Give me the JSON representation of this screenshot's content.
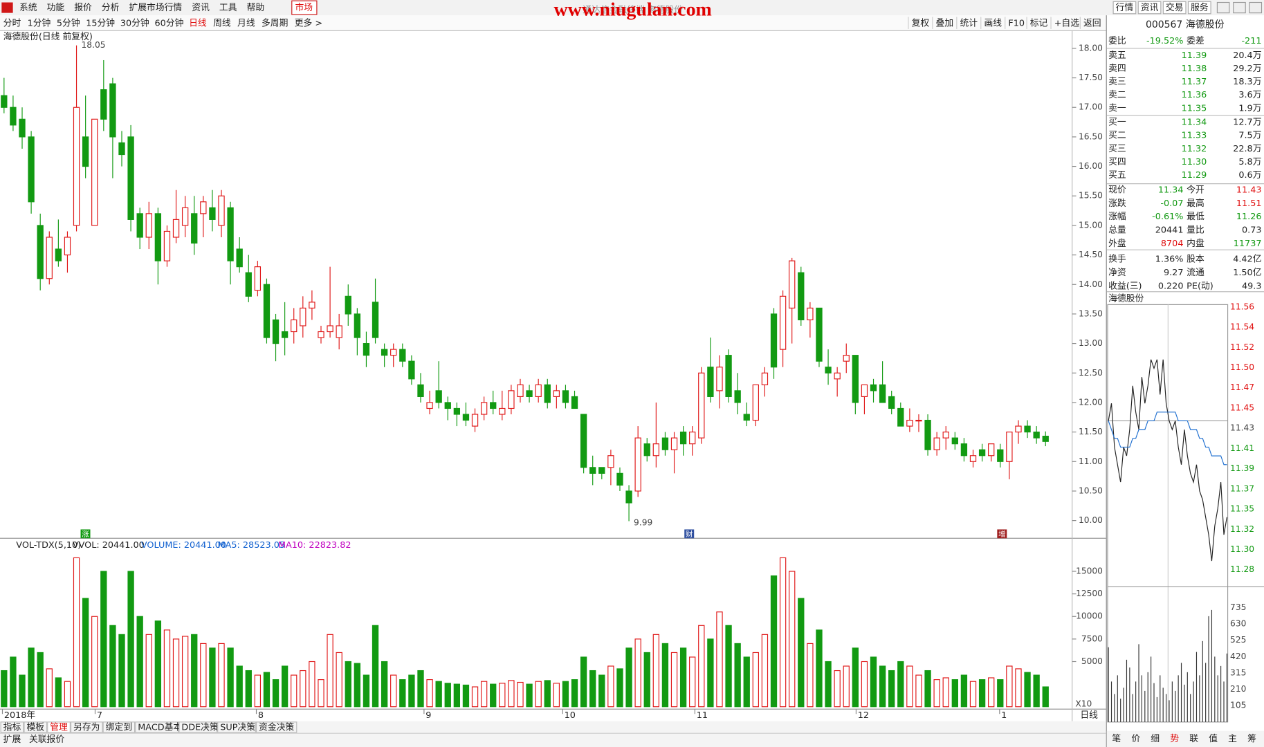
{
  "menu": [
    "系统",
    "功能",
    "报价",
    "分析",
    "扩展市场行情",
    "资讯",
    "工具",
    "帮助"
  ],
  "market_tab": "市场",
  "watermark": "www.niugulan.com",
  "caption": "通达信金融终端 海德股份",
  "top_right_buttons": [
    "行情",
    "资讯",
    "交易",
    "服务"
  ],
  "periods": [
    "分时",
    "1分钟",
    "5分钟",
    "15分钟",
    "30分钟",
    "60分钟",
    "日线",
    "周线",
    "月线",
    "多周期",
    "更多 >"
  ],
  "tools": [
    "复权",
    "叠加",
    "统计",
    "画线",
    "F10",
    "标记",
    "+自选",
    "返回"
  ],
  "chart": {
    "title": "海德股份(日线 前复权)",
    "high_label": "18.05",
    "low_label": "9.99",
    "flags": [
      "涨",
      "财",
      "增"
    ],
    "ylim": [
      9.85,
      18.3
    ],
    "yticks": [
      {
        "value": 18,
        "label": "18.00"
      },
      {
        "value": 17.5,
        "label": "17.50"
      },
      {
        "value": 17,
        "label": "17.00"
      },
      {
        "value": 16.5,
        "label": "16.50"
      },
      {
        "value": 16,
        "label": "16.00"
      },
      {
        "value": 15.5,
        "label": "15.50"
      },
      {
        "value": 15,
        "label": "15.00"
      },
      {
        "value": 14.5,
        "label": "14.50"
      },
      {
        "value": 14,
        "label": "14.00"
      },
      {
        "value": 13.5,
        "label": "13.50"
      },
      {
        "value": 13,
        "label": "13.00"
      },
      {
        "value": 12.5,
        "label": "12.50"
      },
      {
        "value": 12,
        "label": "12.00"
      },
      {
        "value": 11.5,
        "label": "11.50"
      },
      {
        "value": 11,
        "label": "11.00"
      },
      {
        "value": 10.5,
        "label": "10.50"
      },
      {
        "value": 10,
        "label": "10.00"
      }
    ],
    "candles": [
      [
        17.2,
        17.5,
        16.9,
        17.0,
        4000
      ],
      [
        17.0,
        17.2,
        16.6,
        16.7,
        5500
      ],
      [
        16.8,
        17.0,
        16.3,
        16.5,
        3500
      ],
      [
        16.5,
        16.6,
        15.2,
        15.4,
        6500
      ],
      [
        15.0,
        15.2,
        13.9,
        14.1,
        6000
      ],
      [
        14.1,
        14.9,
        14.0,
        14.8,
        4200
      ],
      [
        14.6,
        15.1,
        14.3,
        14.4,
        3200
      ],
      [
        14.5,
        14.9,
        14.2,
        14.8,
        2800
      ],
      [
        15.0,
        18.05,
        14.9,
        17.0,
        16500
      ],
      [
        16.5,
        17.2,
        15.8,
        16.0,
        12000
      ],
      [
        15.0,
        16.8,
        15.0,
        16.8,
        10000
      ],
      [
        17.3,
        17.8,
        16.6,
        16.8,
        15000
      ],
      [
        17.4,
        17.5,
        15.8,
        16.5,
        9000
      ],
      [
        16.4,
        16.6,
        16.0,
        16.2,
        8000
      ],
      [
        16.5,
        16.7,
        14.9,
        15.1,
        15000
      ],
      [
        15.2,
        15.3,
        14.6,
        14.8,
        10000
      ],
      [
        14.8,
        15.4,
        14.6,
        15.2,
        8000
      ],
      [
        15.2,
        15.3,
        14.0,
        14.4,
        9500
      ],
      [
        14.4,
        15.0,
        14.3,
        14.9,
        8500
      ],
      [
        14.8,
        15.6,
        14.7,
        15.1,
        7500
      ],
      [
        15.0,
        15.5,
        14.8,
        15.3,
        7800
      ],
      [
        15.2,
        15.5,
        14.5,
        14.7,
        8000
      ],
      [
        15.2,
        15.5,
        14.8,
        15.4,
        7000
      ],
      [
        15.3,
        15.6,
        14.9,
        15.1,
        6500
      ],
      [
        15.0,
        15.6,
        14.8,
        15.5,
        7000
      ],
      [
        15.3,
        15.4,
        14.0,
        14.4,
        6500
      ],
      [
        14.6,
        14.8,
        14.2,
        14.3,
        4500
      ],
      [
        14.2,
        14.5,
        13.7,
        13.8,
        4000
      ],
      [
        13.9,
        14.4,
        13.8,
        14.3,
        3500
      ],
      [
        14.0,
        14.1,
        13.0,
        13.1,
        3800
      ],
      [
        13.4,
        13.5,
        12.7,
        13.0,
        3000
      ],
      [
        13.2,
        13.7,
        12.8,
        13.1,
        4500
      ],
      [
        13.2,
        13.6,
        13.0,
        13.4,
        3500
      ],
      [
        13.3,
        13.8,
        13.1,
        13.6,
        4000
      ],
      [
        13.6,
        13.9,
        13.4,
        13.7,
        5000
      ],
      [
        13.1,
        13.3,
        13.0,
        13.2,
        3000
      ],
      [
        13.2,
        14.3,
        13.1,
        13.3,
        8000
      ],
      [
        13.1,
        13.5,
        12.9,
        13.3,
        6000
      ],
      [
        13.8,
        14.0,
        13.3,
        13.5,
        5000
      ],
      [
        13.5,
        13.6,
        12.8,
        13.1,
        4800
      ],
      [
        13.0,
        13.2,
        12.6,
        12.8,
        3500
      ],
      [
        13.7,
        14.1,
        13.0,
        13.1,
        9000
      ],
      [
        12.9,
        13.0,
        12.6,
        12.8,
        5000
      ],
      [
        12.8,
        13.0,
        12.6,
        12.9,
        3500
      ],
      [
        12.9,
        13.0,
        12.6,
        12.7,
        3000
      ],
      [
        12.7,
        12.8,
        12.3,
        12.4,
        3500
      ],
      [
        12.3,
        12.5,
        12.0,
        12.1,
        4000
      ],
      [
        11.9,
        12.2,
        11.8,
        12.0,
        3000
      ],
      [
        12.2,
        12.7,
        11.9,
        12.0,
        2800
      ],
      [
        12.0,
        12.1,
        11.7,
        11.9,
        2600
      ],
      [
        11.9,
        12.0,
        11.6,
        11.8,
        2500
      ],
      [
        11.8,
        12.0,
        11.6,
        11.7,
        2400
      ],
      [
        11.6,
        11.9,
        11.5,
        11.8,
        2200
      ],
      [
        11.8,
        12.1,
        11.7,
        12.0,
        2800
      ],
      [
        12.0,
        12.2,
        11.8,
        11.9,
        2500
      ],
      [
        11.8,
        12.2,
        11.7,
        11.9,
        2600
      ],
      [
        11.9,
        12.3,
        11.8,
        12.2,
        2900
      ],
      [
        12.1,
        12.4,
        12.0,
        12.3,
        2700
      ],
      [
        12.2,
        12.3,
        12.0,
        12.1,
        2500
      ],
      [
        12.1,
        12.4,
        12.0,
        12.3,
        2800
      ],
      [
        12.3,
        12.4,
        11.9,
        12.0,
        2900
      ],
      [
        12.1,
        12.3,
        11.9,
        12.2,
        2600
      ],
      [
        12.2,
        12.3,
        11.9,
        12.0,
        2800
      ],
      [
        12.1,
        12.2,
        11.9,
        11.9,
        3000
      ],
      [
        11.8,
        11.8,
        10.8,
        10.9,
        5500
      ],
      [
        10.9,
        11.1,
        10.6,
        10.8,
        4000
      ],
      [
        10.9,
        10.9,
        10.7,
        10.8,
        3500
      ],
      [
        10.9,
        11.2,
        10.6,
        11.1,
        4500
      ],
      [
        10.8,
        10.9,
        10.5,
        10.6,
        4200
      ],
      [
        10.5,
        10.6,
        9.99,
        10.3,
        6500
      ],
      [
        10.5,
        11.6,
        10.4,
        11.4,
        7500
      ],
      [
        11.3,
        11.4,
        11.0,
        11.1,
        6000
      ],
      [
        11.1,
        12.0,
        10.9,
        11.3,
        8000
      ],
      [
        11.4,
        11.5,
        11.1,
        11.2,
        7000
      ],
      [
        11.2,
        11.5,
        10.8,
        11.4,
        6000
      ],
      [
        11.5,
        11.6,
        11.1,
        11.3,
        6500
      ],
      [
        11.3,
        11.6,
        11.1,
        11.5,
        5500
      ],
      [
        11.4,
        12.6,
        11.3,
        12.5,
        9000
      ],
      [
        12.6,
        13.1,
        12.0,
        12.1,
        7500
      ],
      [
        12.2,
        12.8,
        11.9,
        12.6,
        10500
      ],
      [
        12.8,
        12.9,
        12.0,
        12.1,
        9000
      ],
      [
        12.2,
        12.5,
        11.8,
        12.0,
        7000
      ],
      [
        11.8,
        12.0,
        11.6,
        11.7,
        5500
      ],
      [
        11.7,
        12.3,
        11.6,
        12.3,
        6000
      ],
      [
        12.3,
        12.6,
        12.1,
        12.5,
        8000
      ],
      [
        13.5,
        13.6,
        12.4,
        12.6,
        14500
      ],
      [
        12.9,
        13.9,
        12.6,
        13.8,
        16500
      ],
      [
        13.6,
        14.45,
        13.0,
        14.4,
        15000
      ],
      [
        14.2,
        14.3,
        13.3,
        13.4,
        12000
      ],
      [
        13.4,
        13.7,
        13.1,
        13.6,
        7000
      ],
      [
        13.6,
        13.6,
        12.6,
        12.7,
        8500
      ],
      [
        12.6,
        12.9,
        12.3,
        12.5,
        5000
      ],
      [
        12.4,
        12.6,
        12.1,
        12.5,
        4000
      ],
      [
        12.7,
        13.0,
        12.5,
        12.8,
        4500
      ],
      [
        12.8,
        12.8,
        11.8,
        12.0,
        6500
      ],
      [
        12.1,
        12.3,
        11.8,
        12.3,
        5000
      ],
      [
        12.3,
        12.4,
        12.0,
        12.2,
        5500
      ],
      [
        12.3,
        12.7,
        12.0,
        12.0,
        4500
      ],
      [
        12.1,
        12.2,
        11.8,
        11.9,
        4000
      ],
      [
        11.9,
        12.0,
        11.6,
        11.6,
        5000
      ],
      [
        11.6,
        11.9,
        11.5,
        11.7,
        4500
      ],
      [
        11.7,
        11.8,
        11.5,
        11.7,
        3500
      ],
      [
        11.7,
        11.8,
        11.1,
        11.2,
        4000
      ],
      [
        11.2,
        11.5,
        11.1,
        11.4,
        3000
      ],
      [
        11.4,
        11.6,
        11.2,
        11.5,
        3200
      ],
      [
        11.4,
        11.5,
        11.2,
        11.3,
        3000
      ],
      [
        11.3,
        11.4,
        11.0,
        11.1,
        3500
      ],
      [
        11.0,
        11.2,
        10.9,
        11.1,
        2800
      ],
      [
        11.2,
        11.3,
        11.0,
        11.1,
        3000
      ],
      [
        11.1,
        11.3,
        11.0,
        11.3,
        3200
      ],
      [
        11.2,
        11.3,
        10.9,
        11.0,
        3000
      ],
      [
        11.0,
        11.5,
        10.7,
        11.5,
        4500
      ],
      [
        11.5,
        11.7,
        11.3,
        11.6,
        4200
      ],
      [
        11.6,
        11.7,
        11.4,
        11.5,
        3800
      ],
      [
        11.5,
        11.6,
        11.3,
        11.4,
        3500
      ],
      [
        11.43,
        11.51,
        11.26,
        11.34,
        2200
      ]
    ]
  },
  "volume": {
    "indicator": "VOL-TDX(5,10)",
    "vvol": "VVOL: 20441.00",
    "volume": "VOLUME: 20441.00",
    "ma5": "MA5: 28523.05",
    "ma10": "MA10: 22823.82",
    "multiplier": "X10",
    "ylim": [
      0,
      17800
    ],
    "yticks": [
      15000,
      12500,
      10000,
      7500,
      5000
    ]
  },
  "dates": [
    "2018年",
    "7",
    "8",
    "9",
    "10",
    "11",
    "12",
    "1"
  ],
  "period_label": "日线",
  "bottom_tabs": [
    "指标",
    "模板",
    "管理",
    "另存为",
    "绑定到",
    "MACD基本",
    "DDE决策",
    "SUP决策",
    "资金决策"
  ],
  "bottom_tabs2": [
    "扩展",
    "关联报价"
  ],
  "quote": {
    "code_name": "000567 海德股份",
    "wb": [
      "委比",
      "-19.52%",
      "委差",
      "-211"
    ],
    "asks": [
      [
        "卖五",
        "11.39",
        "20.4万"
      ],
      [
        "卖四",
        "11.38",
        "29.2万"
      ],
      [
        "卖三",
        "11.37",
        "18.3万"
      ],
      [
        "卖二",
        "11.36",
        "3.6万"
      ],
      [
        "卖一",
        "11.35",
        "1.9万"
      ]
    ],
    "bids": [
      [
        "买一",
        "11.34",
        "12.7万"
      ],
      [
        "买二",
        "11.33",
        "7.5万"
      ],
      [
        "买三",
        "11.32",
        "22.8万"
      ],
      [
        "买四",
        "11.30",
        "5.8万"
      ],
      [
        "买五",
        "11.29",
        "0.6万"
      ]
    ],
    "stats": [
      [
        "现价",
        "11.34",
        "今开",
        "11.43"
      ],
      [
        "涨跌",
        "-0.07",
        "最高",
        "11.51"
      ],
      [
        "涨幅",
        "-0.61%",
        "最低",
        "11.26"
      ],
      [
        "总量",
        "20441",
        "量比",
        "0.73"
      ],
      [
        "外盘",
        "8704",
        "内盘",
        "11737"
      ],
      [
        "换手",
        "1.36%",
        "股本",
        "4.42亿"
      ],
      [
        "净资",
        "9.27",
        "流通",
        "1.50亿"
      ],
      [
        "收益(三)",
        "0.220",
        "PE(动)",
        "49.3"
      ]
    ]
  },
  "minute": {
    "name": "海德股份",
    "ylim": [
      11.26,
      11.56
    ],
    "yticks": [
      11.56,
      11.54,
      11.52,
      {
        "value": 11.5,
        "label": "11.50"
      },
      11.47,
      11.45,
      11.43,
      11.41,
      11.39,
      11.37,
      11.35,
      11.32,
      {
        "value": 11.3,
        "label": "11.30"
      },
      11.28
    ],
    "price": [
      11.43,
      11.45,
      11.4,
      11.38,
      11.36,
      11.4,
      11.39,
      11.42,
      11.47,
      11.44,
      11.42,
      11.48,
      11.45,
      11.47,
      11.5,
      11.49,
      11.5,
      11.46,
      11.5,
      11.45,
      11.43,
      11.42,
      11.43,
      11.4,
      11.38,
      11.42,
      11.39,
      11.37,
      11.36,
      11.38,
      11.35,
      11.34,
      11.32,
      11.3,
      11.27,
      11.31,
      11.33,
      11.36,
      11.3,
      11.32
    ],
    "avg": [
      11.43,
      11.42,
      11.41,
      11.41,
      11.4,
      11.4,
      11.4,
      11.4,
      11.41,
      11.41,
      11.42,
      11.42,
      11.42,
      11.43,
      11.43,
      11.43,
      11.44,
      11.44,
      11.44,
      11.44,
      11.44,
      11.44,
      11.44,
      11.43,
      11.43,
      11.43,
      11.43,
      11.42,
      11.42,
      11.42,
      11.41,
      11.41,
      11.4,
      11.4,
      11.39,
      11.39,
      11.39,
      11.39,
      11.38,
      11.38
    ],
    "vlim": [
      0,
      840
    ],
    "vticks": [
      735,
      630,
      525,
      420,
      315,
      210,
      105
    ],
    "volumes": [
      480,
      260,
      180,
      300,
      150,
      220,
      400,
      350,
      180,
      260,
      500,
      300,
      200,
      320,
      420,
      250,
      160,
      300,
      220,
      180,
      140,
      260,
      200,
      300,
      380,
      240,
      320,
      180,
      260,
      450,
      300,
      520,
      380,
      680,
      720,
      420,
      300,
      360,
      260,
      440
    ],
    "tabs": [
      "笔",
      "价",
      "细",
      "势",
      "联",
      "值",
      "主",
      "筹"
    ]
  }
}
